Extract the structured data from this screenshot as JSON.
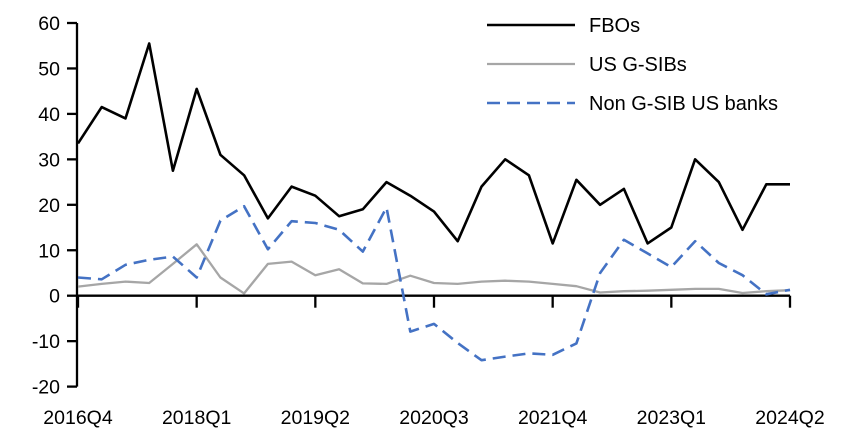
{
  "chart_data": {
    "type": "line",
    "title": "",
    "xlabel": "",
    "ylabel": "",
    "grid": false,
    "legend_position": "top-right",
    "ylim": [
      -20,
      60
    ],
    "ytick_step": 10,
    "x_tick_every": 5,
    "x_axis_tick_labels": [
      "2016Q4",
      "2018Q1",
      "2019Q2",
      "2020Q3",
      "2021Q4",
      "2023Q1",
      "2024Q2"
    ],
    "categories": [
      "2016Q4",
      "2017Q1",
      "2017Q2",
      "2017Q3",
      "2017Q4",
      "2018Q1",
      "2018Q2",
      "2018Q3",
      "2018Q4",
      "2019Q1",
      "2019Q2",
      "2019Q3",
      "2019Q4",
      "2020Q1",
      "2020Q2",
      "2020Q3",
      "2020Q4",
      "2021Q1",
      "2021Q2",
      "2021Q3",
      "2021Q4",
      "2022Q1",
      "2022Q2",
      "2022Q3",
      "2022Q4",
      "2023Q1",
      "2023Q2",
      "2023Q3",
      "2023Q4",
      "2024Q1",
      "2024Q2"
    ],
    "series": [
      {
        "name": "FBOs",
        "color": "#000000",
        "dash": "solid",
        "values": [
          33.5,
          41.5,
          39,
          55.5,
          27.5,
          45.5,
          31,
          26.5,
          17,
          24,
          22,
          17.5,
          19,
          25,
          22,
          18.5,
          12,
          24,
          30,
          26.5,
          11.5,
          25.5,
          20,
          23.5,
          11.5,
          15,
          30,
          25,
          14.5,
          24.5,
          24.5
        ]
      },
      {
        "name": "US G-SIBs",
        "color": "#A6A6A6",
        "dash": "solid",
        "values": [
          2,
          2.6,
          3.1,
          2.8,
          7,
          11.3,
          4,
          0.5,
          7,
          7.5,
          4.5,
          5.8,
          2.7,
          2.6,
          4.4,
          2.8,
          2.6,
          3.1,
          3.3,
          3.1,
          2.6,
          2.1,
          0.7,
          1,
          1.1,
          1.3,
          1.5,
          1.5,
          0.6,
          1,
          1.2
        ]
      },
      {
        "name": "Non G-SIB US banks",
        "color": "#4472C4",
        "dash": "dashed",
        "values": [
          4,
          3.6,
          6.8,
          7.9,
          8.6,
          4,
          16.5,
          19.7,
          10.2,
          16.4,
          16,
          14.5,
          9.7,
          19.4,
          -7.9,
          -6.2,
          -10.4,
          -14.2,
          -13.4,
          -12.7,
          -13,
          -10.5,
          5,
          12.3,
          9.3,
          6.3,
          12,
          7.2,
          4.5,
          0.3,
          1.3
        ]
      }
    ]
  },
  "axis_colors": {
    "axis_line": "#000000",
    "tick_label": "#000000"
  }
}
